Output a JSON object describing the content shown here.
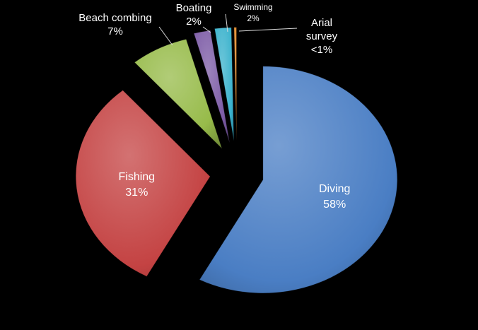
{
  "chart_data": {
    "type": "pie",
    "style": "exploded 3D pie",
    "legend": "none",
    "slices": [
      {
        "name": "Diving",
        "value": 58,
        "label": "58%",
        "color": "#4a7ec4"
      },
      {
        "name": "Fishing",
        "value": 31,
        "label": "31%",
        "color": "#c44343"
      },
      {
        "name": "Beach combing",
        "value": 7,
        "label": "7%",
        "color": "#97bb4a"
      },
      {
        "name": "Boating",
        "value": 2,
        "label": "2%",
        "color": "#7c5ba6"
      },
      {
        "name": "Swimming",
        "value": 2,
        "label": "2%",
        "color": "#3ab2cc"
      },
      {
        "name": "Arial survey",
        "value": 0.3,
        "label": "<1%",
        "color": "#e08a2a"
      }
    ]
  }
}
